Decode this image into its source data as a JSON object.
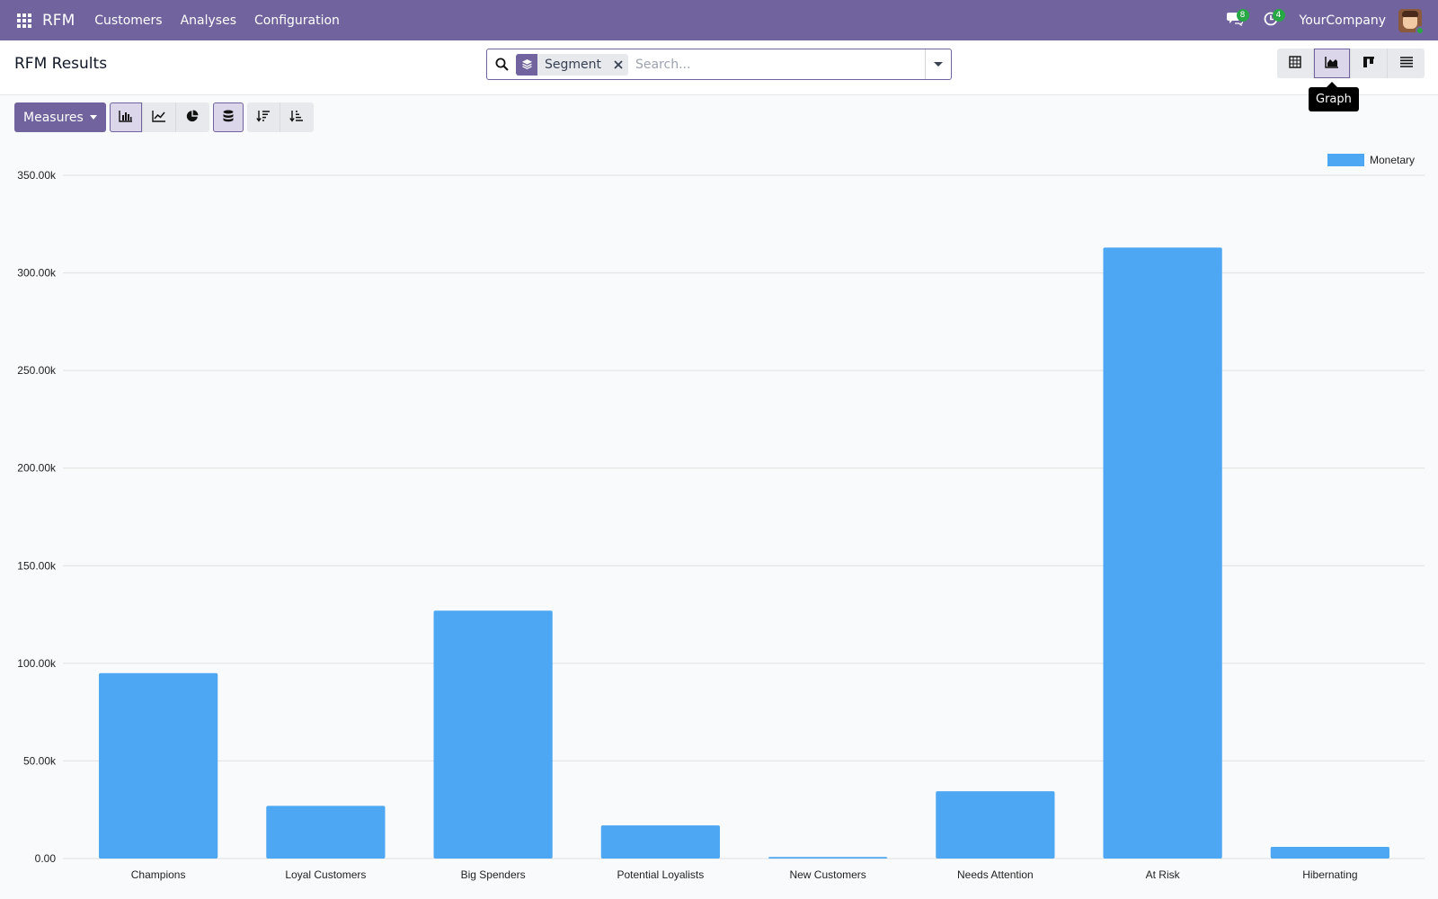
{
  "navbar": {
    "brand": "RFM",
    "menu": [
      "Customers",
      "Analyses",
      "Configuration"
    ],
    "messages_badge": "8",
    "activities_badge": "4",
    "company": "YourCompany"
  },
  "control_panel": {
    "title": "RFM Results",
    "facet_label": "Segment",
    "search_placeholder": "Search...",
    "active_view_tooltip": "Graph"
  },
  "toolbar": {
    "measures_label": "Measures"
  },
  "colors": {
    "navbar": "#71639e",
    "bar": "#4ea7f2"
  },
  "chart_data": {
    "type": "bar",
    "categories": [
      "Champions",
      "Loyal Customers",
      "Big Spenders",
      "Potential Loyalists",
      "New Customers",
      "Needs Attention",
      "At Risk",
      "Hibernating"
    ],
    "series": [
      {
        "name": "Monetary",
        "values": [
          95000,
          27000,
          127000,
          17000,
          800,
          34500,
          313000,
          6000
        ]
      }
    ],
    "y_ticks": [
      "0.00",
      "50.00k",
      "100.00k",
      "150.00k",
      "200.00k",
      "250.00k",
      "300.00k",
      "350.00k"
    ],
    "ylim": [
      0,
      350000
    ],
    "grid": true,
    "legend_position": "top-right"
  }
}
